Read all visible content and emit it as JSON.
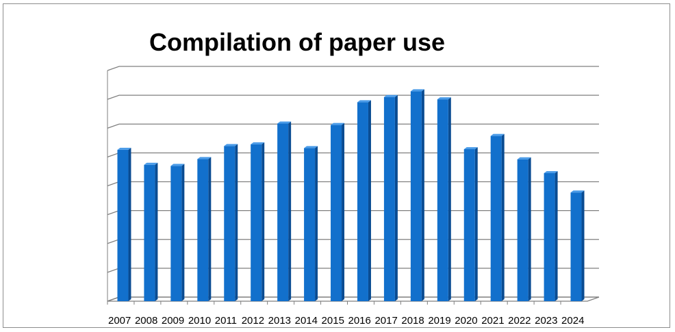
{
  "chart_data": {
    "type": "bar",
    "title": "Compilation of paper use",
    "xlabel": "",
    "ylabel": "",
    "categories": [
      "2007",
      "2008",
      "2009",
      "2010",
      "2011",
      "2012",
      "2013",
      "2014",
      "2015",
      "2016",
      "2017",
      "2018",
      "2019",
      "2020",
      "2021",
      "2022",
      "2023",
      "2024"
    ],
    "values": [
      52.5,
      47.3,
      46.9,
      49.3,
      53.8,
      54.4,
      61.6,
      53.1,
      61.1,
      69.0,
      70.8,
      72.8,
      70.0,
      52.7,
      57.3,
      49.2,
      44.4,
      37.7
    ],
    "ylim": [
      0,
      80
    ],
    "y_ticks_shown": false,
    "grid": true,
    "legend": "none",
    "bar_style": "3d-column",
    "colors": {
      "bar_front": "#1270cc",
      "bar_side": "#0a4c92",
      "bar_top": "#4a9be8",
      "grid": "#7f7f7f"
    }
  }
}
